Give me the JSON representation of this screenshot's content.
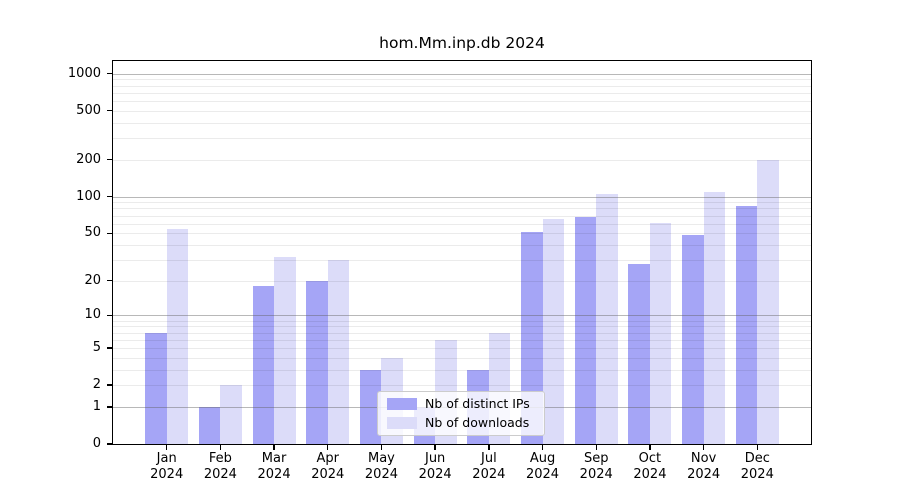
{
  "title": "hom.Mm.inp.db 2024",
  "chart_data": {
    "type": "bar",
    "title": "hom.Mm.inp.db 2024",
    "categories": [
      "Jan",
      "Feb",
      "Mar",
      "Apr",
      "May",
      "Jun",
      "Jul",
      "Aug",
      "Sep",
      "Oct",
      "Nov",
      "Dec"
    ],
    "year": "2024",
    "series": [
      {
        "name": "Nb of distinct IPs",
        "color": "#a5a5f6",
        "values": [
          7,
          1,
          18,
          20,
          3,
          1,
          3,
          51,
          68,
          28,
          48,
          84
        ]
      },
      {
        "name": "Nb of downloads",
        "color": "#dcdcf9",
        "values": [
          54,
          2,
          32,
          30,
          4,
          6,
          7,
          66,
          105,
          61,
          109,
          200
        ]
      }
    ],
    "xlabel": "",
    "ylabel": "",
    "y_scale": "log10(1+y)",
    "y_ticks": [
      0,
      1,
      2,
      5,
      10,
      20,
      50,
      100,
      200,
      500,
      1000
    ],
    "y_axis_max": 1267,
    "grid": "horizontal",
    "legend_position": "inside-bottom-center"
  }
}
